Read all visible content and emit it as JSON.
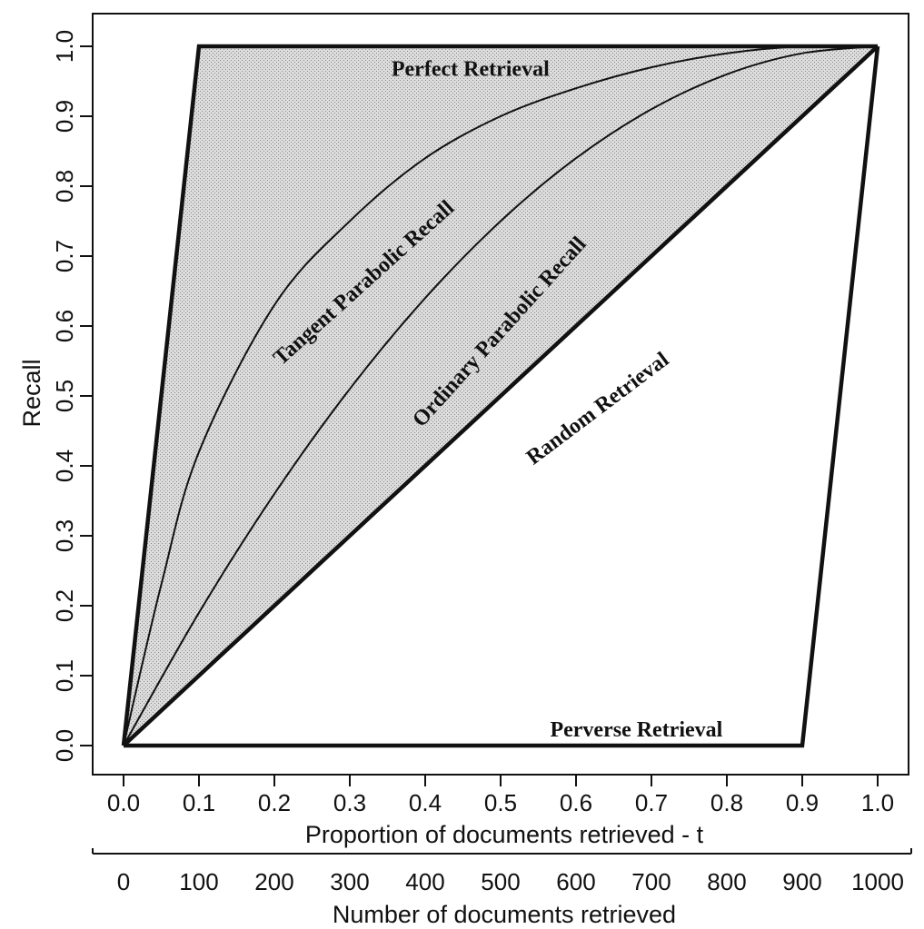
{
  "chart_data": {
    "type": "line",
    "xlabel": "Proportion of documents retrieved - t",
    "ylabel": "Recall",
    "secondary_xlabel": "Number of documents retrieved",
    "xlim": [
      0.0,
      1.0
    ],
    "ylim": [
      0.0,
      1.0
    ],
    "secondary_xlim": [
      0,
      1000
    ],
    "x_ticks": [
      "0.0",
      "0.1",
      "0.2",
      "0.3",
      "0.4",
      "0.5",
      "0.6",
      "0.7",
      "0.8",
      "0.9",
      "1.0"
    ],
    "y_ticks": [
      "0.0",
      "0.1",
      "0.2",
      "0.3",
      "0.4",
      "0.5",
      "0.6",
      "0.7",
      "0.8",
      "0.9",
      "1.0"
    ],
    "secondary_x_ticks": [
      "0",
      "100",
      "200",
      "300",
      "400",
      "500",
      "600",
      "700",
      "800",
      "900",
      "1000"
    ],
    "grid": false,
    "shaded_region": "between Perfect Retrieval and Random Retrieval",
    "series": [
      {
        "x": [
          0.0,
          0.1,
          1.0
        ],
        "y": [
          0.0,
          1.0,
          1.0
        ]
      },
      {
        "x": [
          0.0,
          0.05,
          0.1,
          0.2,
          0.3,
          0.4,
          0.5,
          0.6,
          0.7,
          0.8,
          0.9,
          1.0
        ],
        "y": [
          0.0,
          0.23,
          0.42,
          0.63,
          0.75,
          0.84,
          0.9,
          0.94,
          0.97,
          0.99,
          1.0,
          1.0
        ]
      },
      {
        "x": [
          0.0,
          0.1,
          0.2,
          0.3,
          0.4,
          0.5,
          0.6,
          0.7,
          0.8,
          0.9,
          1.0
        ],
        "y": [
          0.0,
          0.19,
          0.36,
          0.51,
          0.64,
          0.75,
          0.84,
          0.91,
          0.96,
          0.99,
          1.0
        ]
      },
      {
        "x": [
          0.0,
          1.0
        ],
        "y": [
          0.0,
          1.0
        ]
      },
      {
        "x": [
          0.0,
          0.9,
          1.0
        ],
        "y": [
          0.0,
          0.0,
          1.0
        ]
      }
    ],
    "annotations": [
      {
        "text": "Perfect Retrieval",
        "x": 0.46,
        "y": 0.965,
        "angle": 0
      },
      {
        "text": "Tangent Parabolic Recall",
        "x": 0.32,
        "y": 0.66,
        "angle": -42
      },
      {
        "text": "Ordinary Parabolic Recall",
        "x": 0.5,
        "y": 0.59,
        "angle": -48
      },
      {
        "text": "Random Retrieval",
        "x": 0.63,
        "y": 0.48,
        "angle": -37
      },
      {
        "text": "Perverse Retrieval",
        "x": 0.68,
        "y": 0.02,
        "angle": 0
      }
    ]
  }
}
